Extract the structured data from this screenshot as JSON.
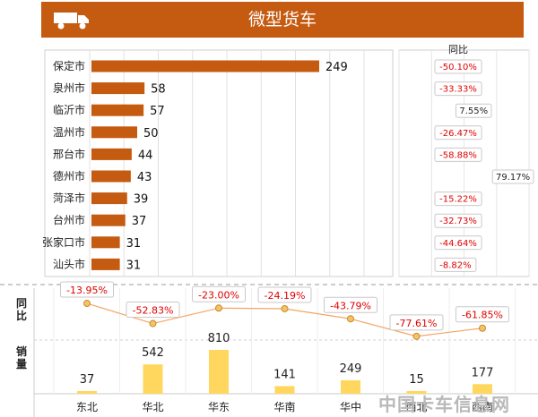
{
  "header": {
    "title": "微型货车",
    "icon": "truck-icon"
  },
  "yoy_title": "同比",
  "bottom_labels": {
    "yoy": "同比",
    "sales": "销量"
  },
  "watermark": "中国卡车信息网",
  "colors": {
    "brand": "#c55a11",
    "bar": "#c55a11",
    "bar_gold": "#ffd75e",
    "line": "#f4a460",
    "negative": "#e00000"
  },
  "chart_data": [
    {
      "type": "bar",
      "orientation": "horizontal",
      "title": "微型货车",
      "categories": [
        "保定市",
        "泉州市",
        "临沂市",
        "温州市",
        "邢台市",
        "德州市",
        "菏泽市",
        "台州市",
        "张家口市",
        "汕头市"
      ],
      "values": [
        249,
        58,
        57,
        50,
        44,
        43,
        39,
        37,
        31,
        31
      ],
      "xlim": [
        0,
        300
      ],
      "grid": true
    },
    {
      "type": "scatter",
      "title": "同比",
      "categories": [
        "保定市",
        "泉州市",
        "临沂市",
        "温州市",
        "邢台市",
        "德州市",
        "菏泽市",
        "台州市",
        "张家口市",
        "汕头市"
      ],
      "values": [
        -50.1,
        -33.33,
        7.55,
        -26.47,
        -58.88,
        79.17,
        -15.22,
        -32.73,
        -44.64,
        -8.82
      ],
      "labels": [
        "-50.10%",
        "-33.33%",
        "7.55%",
        "-26.47%",
        "-58.88%",
        "79.17%",
        "-15.22%",
        "-32.73%",
        "-44.64%",
        "-8.82%"
      ],
      "xlim": [
        -100,
        100
      ]
    },
    {
      "type": "line",
      "title": "同比",
      "categories": [
        "东北",
        "华北",
        "华东",
        "华南",
        "华中",
        "西北",
        "西南"
      ],
      "values": [
        -13.95,
        -52.83,
        -23.0,
        -24.19,
        -43.79,
        -77.61,
        -61.85
      ],
      "labels": [
        "-13.95%",
        "-52.83%",
        "-23.00%",
        "-24.19%",
        "-43.79%",
        "-77.61%",
        "-61.85%"
      ],
      "ylim": [
        -90,
        0
      ]
    },
    {
      "type": "bar",
      "title": "销量",
      "categories": [
        "东北",
        "华北",
        "华东",
        "华南",
        "华中",
        "西北",
        "西南"
      ],
      "values": [
        37,
        542,
        810,
        141,
        249,
        15,
        177
      ],
      "ylim": [
        0,
        810
      ]
    }
  ]
}
